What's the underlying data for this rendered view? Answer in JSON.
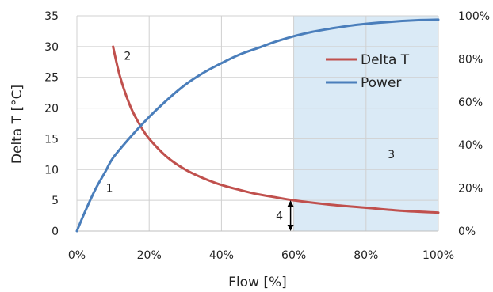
{
  "chart_data": {
    "type": "line",
    "xlabel": "Flow [%]",
    "ylabel": "Delta T [°C]",
    "xlim": [
      0,
      100
    ],
    "ylim": [
      0,
      35
    ],
    "y2lim": [
      0,
      100
    ],
    "x_ticks": [
      "0%",
      "20%",
      "40%",
      "60%",
      "80%",
      "100%"
    ],
    "y_ticks": [
      "0",
      "5",
      "10",
      "15",
      "20",
      "25",
      "30",
      "35"
    ],
    "y2_ticks": [
      "0%",
      "20%",
      "40%",
      "60%",
      "80%",
      "100%"
    ],
    "grid": true,
    "legend_position": "top-right",
    "series": [
      {
        "name": "Delta T",
        "axis": "left",
        "color": "#c0504d",
        "x": [
          10,
          12,
          15,
          18,
          20,
          25,
          30,
          35,
          40,
          45,
          50,
          55,
          60,
          70,
          80,
          90,
          100
        ],
        "y": [
          30,
          25,
          20,
          16.7,
          15,
          12,
          10,
          8.6,
          7.5,
          6.7,
          6,
          5.5,
          5,
          4.3,
          3.8,
          3.3,
          3
        ]
      },
      {
        "name": "Power",
        "axis": "right",
        "color": "#4a7ebb",
        "x": [
          0,
          2,
          5,
          8,
          10,
          15,
          20,
          25,
          30,
          35,
          40,
          45,
          50,
          55,
          60,
          65,
          70,
          75,
          80,
          85,
          90,
          95,
          100
        ],
        "y": [
          0,
          8,
          19,
          28,
          34,
          44,
          53,
          61,
          68,
          73.5,
          78,
          82,
          85,
          88,
          90.5,
          92.5,
          94,
          95.3,
          96.3,
          97,
          97.6,
          98,
          98.2
        ]
      }
    ],
    "shaded_region": {
      "x": [
        60,
        100
      ],
      "color": "#daeaf6"
    },
    "arrow": {
      "x": 60,
      "y_from": 0,
      "y_to": 5,
      "label": "4"
    },
    "annotations": [
      {
        "label": "1",
        "x": 9,
        "y": 7
      },
      {
        "label": "2",
        "x": 14,
        "y": 28.5
      },
      {
        "label": "3",
        "x": 87,
        "y": 12.5
      }
    ]
  }
}
